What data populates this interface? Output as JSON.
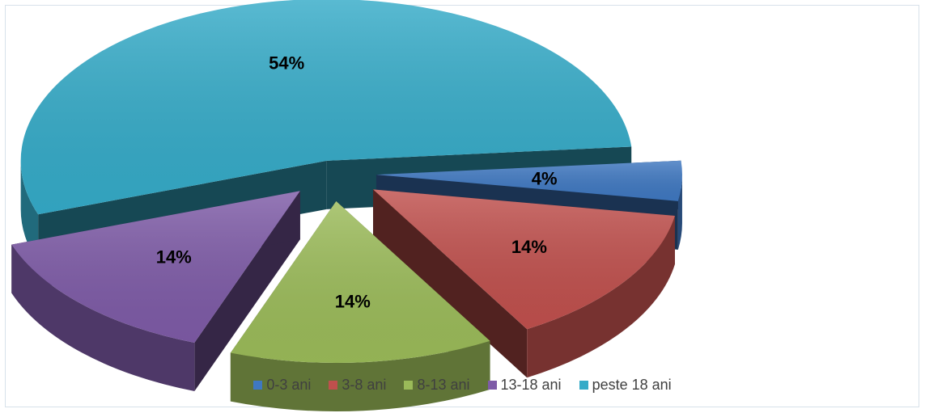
{
  "chart_data": {
    "type": "pie",
    "categories": [
      "0-3 ani",
      "3-8 ani",
      "8-13 ani",
      "13-18 ani",
      "peste 18 ani"
    ],
    "values": [
      4,
      14,
      14,
      14,
      54
    ],
    "value_labels": [
      "4%",
      "14%",
      "14%",
      "14%",
      "54%"
    ],
    "colors": [
      "#3f78c1",
      "#c0504d",
      "#9bbb59",
      "#7e5ba7",
      "#35abc8"
    ],
    "legend_position": "bottom",
    "style": "3d-exploded"
  }
}
